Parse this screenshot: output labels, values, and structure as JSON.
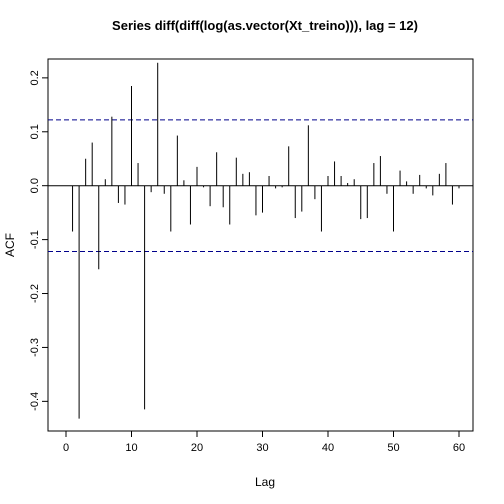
{
  "chart_data": {
    "type": "bar",
    "title": "Series  diff(diff(log(as.vector(Xt_treino))), lag = 12)",
    "xlabel": "Lag",
    "ylabel": "ACF",
    "xlim": [
      0,
      61
    ],
    "ylim": [
      -0.455,
      0.235
    ],
    "x_ticks": [
      0,
      10,
      20,
      30,
      40,
      50,
      60
    ],
    "y_ticks": [
      -0.4,
      -0.3,
      -0.2,
      -0.1,
      0.0,
      0.1,
      0.2
    ],
    "y_tick_labels": [
      "-0.4",
      "-0.3",
      "-0.2",
      "-0.1",
      "0.0",
      "0.1",
      "0.2"
    ],
    "x_tick_labels": [
      "0",
      "10",
      "20",
      "30",
      "40",
      "50",
      "60"
    ],
    "confidence_limit": 0.122,
    "lags": [
      1,
      2,
      3,
      4,
      5,
      6,
      7,
      8,
      9,
      10,
      11,
      12,
      13,
      14,
      15,
      16,
      17,
      18,
      19,
      20,
      21,
      22,
      23,
      24,
      25,
      26,
      27,
      28,
      29,
      30,
      31,
      32,
      33,
      34,
      35,
      36,
      37,
      38,
      39,
      40,
      41,
      42,
      43,
      44,
      45,
      46,
      47,
      48,
      49,
      50,
      51,
      52,
      53,
      54,
      55,
      56,
      57,
      58,
      59,
      60
    ],
    "values": [
      -0.085,
      -0.432,
      0.05,
      0.08,
      -0.155,
      0.012,
      0.128,
      -0.032,
      -0.035,
      0.185,
      0.042,
      -0.415,
      -0.012,
      0.228,
      -0.015,
      -0.085,
      0.093,
      0.01,
      -0.072,
      0.035,
      -0.003,
      -0.038,
      0.062,
      -0.04,
      -0.072,
      0.052,
      0.022,
      0.025,
      -0.055,
      -0.05,
      0.018,
      -0.005,
      -0.003,
      0.073,
      -0.06,
      -0.048,
      0.112,
      -0.025,
      -0.085,
      0.018,
      0.045,
      0.018,
      0.005,
      0.012,
      -0.062,
      -0.06,
      0.042,
      0.055,
      -0.015,
      -0.085,
      0.028,
      0.008,
      -0.015,
      0.02,
      -0.005,
      -0.018,
      0.022,
      0.042,
      -0.035,
      -0.005
    ],
    "colors": {
      "bars": "#000000",
      "confidence": "#00008b",
      "zero_line": "#000000"
    }
  }
}
